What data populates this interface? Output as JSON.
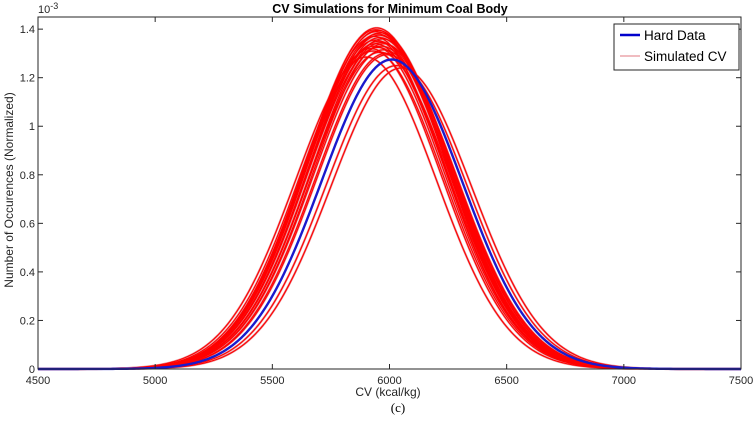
{
  "chart_data": {
    "type": "line",
    "title": "CV Simulations for Minimum Coal Body",
    "xlabel": "CV (kcal/kg)",
    "ylabel": "Number of Occurences (Normalized)",
    "y_exponent": "10",
    "y_exponent_power": "-3",
    "caption": "(c)",
    "xlim": [
      4500,
      7500
    ],
    "ylim": [
      0,
      1.45
    ],
    "x_ticks": [
      4500,
      5000,
      5500,
      6000,
      6500,
      7000,
      7500
    ],
    "y_ticks": [
      0,
      0.2,
      0.4,
      0.6,
      0.8,
      1,
      1.2,
      1.4
    ],
    "x_tick_labels": [
      "4500",
      "5000",
      "5500",
      "6000",
      "6500",
      "7000",
      "7500"
    ],
    "y_tick_labels": [
      "0",
      "0.2",
      "0.4",
      "0.6",
      "0.8",
      "1",
      "1.2",
      "1.4"
    ],
    "legend": {
      "position": "top-right",
      "entries": [
        {
          "name": "Hard Data",
          "color": "#0000cc"
        },
        {
          "name": "Simulated CV",
          "color": "#e8959a"
        }
      ]
    },
    "hard_data": {
      "name": "Hard Data",
      "distribution": "normal",
      "mean": 6010,
      "peak": 1.275,
      "color": "#1a1acc"
    },
    "simulated": {
      "name": "Simulated CV",
      "distribution": "normal",
      "color": "#ff0000",
      "outline_color": "#e8959a",
      "realizations": [
        {
          "mean": 5945,
          "peak": 1.405
        },
        {
          "mean": 5950,
          "peak": 1.395
        },
        {
          "mean": 5960,
          "peak": 1.385
        },
        {
          "mean": 5935,
          "peak": 1.37
        },
        {
          "mean": 5970,
          "peak": 1.36
        },
        {
          "mean": 5955,
          "peak": 1.35
        },
        {
          "mean": 5940,
          "peak": 1.34
        },
        {
          "mean": 5965,
          "peak": 1.33
        },
        {
          "mean": 5950,
          "peak": 1.325
        },
        {
          "mean": 5975,
          "peak": 1.315
        },
        {
          "mean": 5930,
          "peak": 1.31
        },
        {
          "mean": 5960,
          "peak": 1.305
        },
        {
          "mean": 5945,
          "peak": 1.39
        },
        {
          "mean": 5955,
          "peak": 1.375
        },
        {
          "mean": 5985,
          "peak": 1.3
        },
        {
          "mean": 5940,
          "peak": 1.355
        },
        {
          "mean": 5965,
          "peak": 1.345
        },
        {
          "mean": 5950,
          "peak": 1.38
        },
        {
          "mean": 5920,
          "peak": 1.32
        },
        {
          "mean": 5990,
          "peak": 1.295
        },
        {
          "mean": 5958,
          "peak": 1.365
        },
        {
          "mean": 5942,
          "peak": 1.398
        },
        {
          "mean": 5975,
          "peak": 1.34
        },
        {
          "mean": 5935,
          "peak": 1.33
        },
        {
          "mean": 6030,
          "peak": 1.25
        },
        {
          "mean": 6050,
          "peak": 1.24
        },
        {
          "mean": 5900,
          "peak": 1.285
        }
      ]
    }
  }
}
